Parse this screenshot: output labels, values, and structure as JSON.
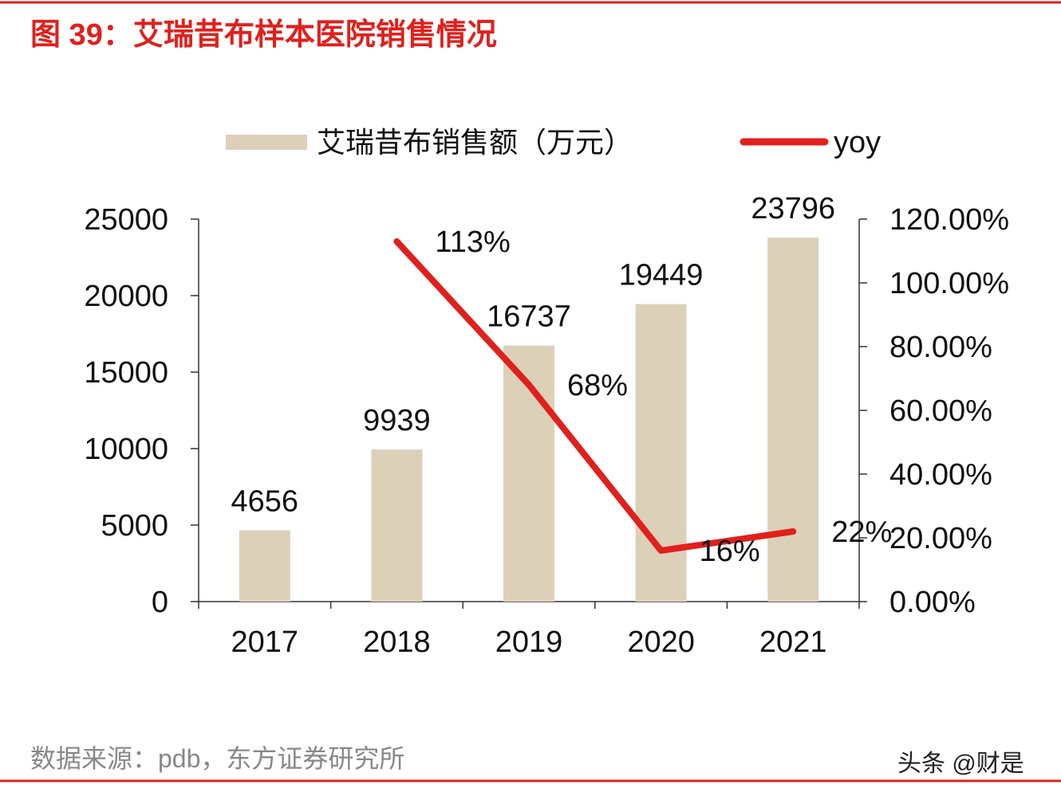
{
  "title": "图 39：艾瑞昔布样本医院销售情况",
  "source": "数据来源：pdb，东方证券研究所",
  "watermark": "头条 @财是",
  "colors": {
    "accent": "#e0201c",
    "bar": "#ddd0b8",
    "line": "#e0201c",
    "text": "#111111",
    "source": "#888888"
  },
  "chart_data": {
    "type": "bar+line",
    "categories": [
      "2017",
      "2018",
      "2019",
      "2020",
      "2021"
    ],
    "series": [
      {
        "name": "艾瑞昔布销售额（万元）",
        "type": "bar",
        "axis": "left",
        "values": [
          4656,
          9939,
          16737,
          19449,
          23796
        ],
        "labels": [
          "4656",
          "9939",
          "16737",
          "19449",
          "23796"
        ]
      },
      {
        "name": "yoy",
        "type": "line",
        "axis": "right",
        "values": [
          null,
          113,
          68,
          16,
          22
        ],
        "labels": [
          "",
          "113%",
          "68%",
          "16%",
          "22%"
        ]
      }
    ],
    "left_axis": {
      "ylim": [
        0,
        25000
      ],
      "ticks": [
        "0",
        "5000",
        "10000",
        "15000",
        "20000",
        "25000"
      ]
    },
    "right_axis": {
      "ylim": [
        0,
        120
      ],
      "ticks": [
        "0.00%",
        "20.00%",
        "40.00%",
        "60.00%",
        "80.00%",
        "100.00%",
        "120.00%"
      ]
    },
    "legend_position": "top",
    "grid": false
  }
}
